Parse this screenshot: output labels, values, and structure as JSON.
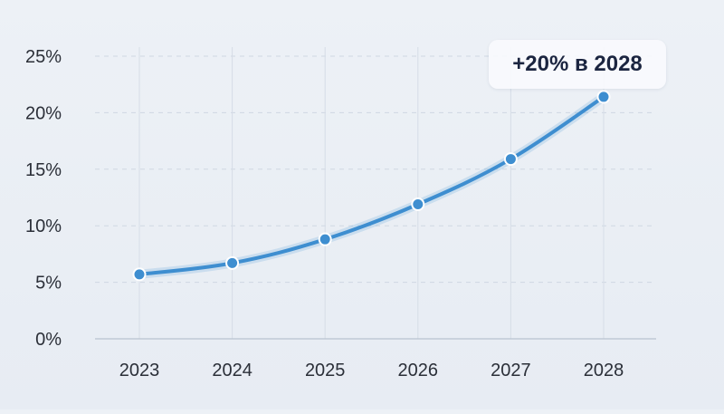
{
  "chart_data": {
    "type": "line",
    "categories": [
      "2023",
      "2024",
      "2025",
      "2026",
      "2027",
      "2028"
    ],
    "series": [
      {
        "values": [
          5.7,
          6.7,
          8.8,
          11.9,
          15.9,
          21.4
        ]
      }
    ],
    "ylim": [
      0,
      25
    ],
    "yticks": [
      "0%",
      "5%",
      "10%",
      "15%",
      "20%",
      "25%"
    ],
    "grid": true,
    "annotation": "+20% в 2028",
    "colors": {
      "line": "#3e8ed0",
      "marker_fill": "#3e8ed0",
      "marker_stroke": "#ffffff"
    }
  }
}
